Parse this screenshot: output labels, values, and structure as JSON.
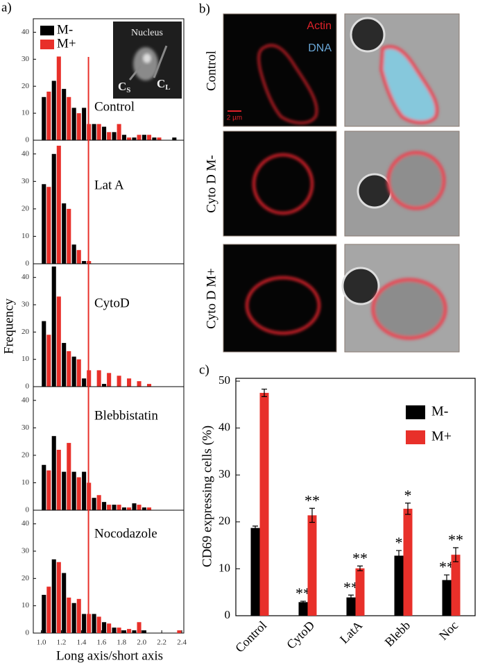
{
  "panel_a": {
    "label": "a)",
    "ylabel": "Frequency",
    "xlabel": "Long axis/short axis",
    "threshold": 1.47,
    "threshold_color": "#e8302a",
    "inset": {
      "title": "Nucleus",
      "short_axis": {
        "main": "C",
        "sub": "S"
      },
      "long_axis": {
        "main": "C",
        "sub": "L"
      }
    }
  },
  "panel_b": {
    "label": "b)",
    "channel_actin": "Actin",
    "channel_dna": "DNA",
    "scale_bar": "2 µm",
    "rows": [
      "Control",
      "Cyto D M-",
      "Cyto D M+"
    ]
  },
  "panel_c": {
    "label": "c)"
  },
  "chart_data": [
    {
      "type": "bar",
      "title": "Control",
      "x": [
        1.05,
        1.15,
        1.25,
        1.35,
        1.45,
        1.55,
        1.65,
        1.75,
        1.85,
        1.95,
        2.05,
        2.15,
        2.25,
        2.35
      ],
      "series": [
        {
          "name": "M-",
          "color": "#000000",
          "values": [
            16,
            22,
            19,
            12,
            12,
            6,
            5,
            3,
            2,
            1,
            2,
            1,
            0,
            1
          ]
        },
        {
          "name": "M+",
          "color": "#e8302a",
          "values": [
            18,
            31,
            16,
            10,
            6,
            6,
            3,
            6,
            1,
            2,
            2,
            1,
            0,
            0
          ]
        }
      ],
      "xlim": [
        0.92,
        2.42
      ],
      "ylim": [
        0,
        45
      ],
      "yticks": [
        0,
        10,
        20,
        30,
        40
      ]
    },
    {
      "type": "bar",
      "title": "Lat A",
      "x": [
        1.05,
        1.15,
        1.25,
        1.35,
        1.45,
        1.55,
        1.65,
        1.75,
        1.85,
        1.95,
        2.05,
        2.15,
        2.25,
        2.35
      ],
      "series": [
        {
          "color": "#000000",
          "values": [
            29,
            40,
            22,
            7,
            1,
            0,
            0,
            0,
            0,
            0,
            0,
            0,
            0,
            0
          ]
        },
        {
          "color": "#e8302a",
          "values": [
            28,
            43,
            20,
            5,
            1,
            0,
            0,
            0,
            0,
            0,
            0,
            0,
            0,
            0
          ]
        }
      ],
      "xlim": [
        0.92,
        2.42
      ],
      "ylim": [
        0,
        45
      ],
      "yticks": [
        0,
        10,
        20,
        30,
        40
      ]
    },
    {
      "type": "bar",
      "title": "CytoD",
      "x": [
        1.05,
        1.15,
        1.25,
        1.35,
        1.45,
        1.55,
        1.65,
        1.75,
        1.85,
        1.95,
        2.05,
        2.15,
        2.25,
        2.35
      ],
      "series": [
        {
          "color": "#000000",
          "values": [
            24,
            44,
            16,
            11,
            3,
            0,
            1,
            0,
            0,
            0,
            0,
            0,
            0,
            0
          ]
        },
        {
          "color": "#e8302a",
          "values": [
            19,
            33,
            13,
            10,
            6,
            6,
            5,
            4,
            3,
            2,
            1,
            0,
            0,
            0
          ]
        }
      ],
      "xlim": [
        0.92,
        2.42
      ],
      "ylim": [
        0,
        45
      ],
      "yticks": [
        0,
        10,
        20,
        30,
        40
      ]
    },
    {
      "type": "bar",
      "title": "Blebbistatin",
      "x": [
        1.05,
        1.15,
        1.25,
        1.35,
        1.45,
        1.55,
        1.65,
        1.75,
        1.85,
        1.95,
        2.05,
        2.15,
        2.25,
        2.35
      ],
      "series": [
        {
          "color": "#000000",
          "values": [
            16.5,
            27,
            14,
            14,
            14,
            4.5,
            3,
            2,
            1,
            2.5,
            1,
            0,
            0,
            0
          ]
        },
        {
          "color": "#e8302a",
          "values": [
            14.5,
            22,
            24.5,
            12,
            10,
            5.5,
            2,
            2,
            1,
            2,
            1,
            0,
            0,
            0
          ]
        }
      ],
      "xlim": [
        0.92,
        2.42
      ],
      "ylim": [
        0,
        45
      ],
      "yticks": [
        0,
        10,
        20,
        30,
        40
      ]
    },
    {
      "type": "bar",
      "title": "Nocodazole",
      "x": [
        1.05,
        1.15,
        1.25,
        1.35,
        1.45,
        1.55,
        1.65,
        1.75,
        1.85,
        1.95,
        2.05,
        2.15,
        2.25,
        2.35
      ],
      "series": [
        {
          "color": "#000000",
          "values": [
            14,
            27,
            22,
            11,
            7,
            7,
            4,
            2,
            1,
            1,
            1,
            0,
            0,
            0
          ]
        },
        {
          "color": "#e8302a",
          "values": [
            17,
            26,
            13,
            12.5,
            7,
            6,
            3.5,
            2,
            1.5,
            4,
            0,
            0,
            0,
            1
          ]
        }
      ],
      "xlim": [
        0.92,
        2.42
      ],
      "ylim": [
        0,
        45
      ],
      "yticks": [
        0,
        10,
        20,
        30,
        40
      ],
      "xticks": [
        {
          "value": 1.0,
          "label": "1.0"
        },
        {
          "value": 1.2,
          "label": "1.2"
        },
        {
          "value": 1.4,
          "label": "1.4"
        },
        {
          "value": 1.6,
          "label": "1.6"
        },
        {
          "value": 1.8,
          "label": "1.8"
        },
        {
          "value": 2.0,
          "label": "2.0"
        },
        {
          "value": 2.2,
          "label": "2.2"
        },
        {
          "value": 2.4,
          "label": "2.4"
        }
      ]
    },
    {
      "type": "grouped_bar",
      "ylabel": "CD69 expressing cells (%)",
      "categories": [
        "Control",
        "CytoD",
        "LatA",
        "Blebb",
        "Noc"
      ],
      "series": [
        {
          "name": "M-",
          "color": "#000000",
          "values": [
            18.7,
            2.9,
            3.9,
            12.8,
            7.6
          ],
          "errors": [
            0.4,
            0.2,
            0.5,
            1.1,
            1.1
          ],
          "annotations": [
            null,
            "**",
            "**",
            "*",
            "**"
          ]
        },
        {
          "name": "M+",
          "color": "#e8302a",
          "values": [
            47.5,
            21.4,
            10.1,
            22.8,
            13.0
          ],
          "errors": [
            0.8,
            1.5,
            0.5,
            1.2,
            1.5
          ],
          "annotations": [
            null,
            "**",
            "**",
            "*",
            "**"
          ]
        }
      ],
      "ylim": [
        0,
        50.6
      ],
      "yticks": [
        0,
        10,
        20,
        30,
        40,
        50
      ]
    }
  ]
}
